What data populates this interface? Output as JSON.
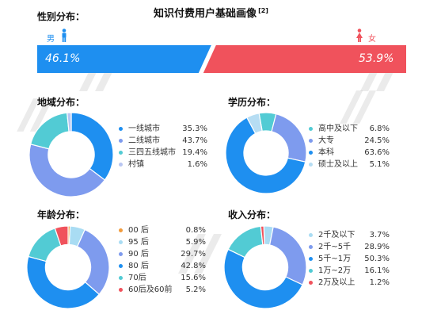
{
  "header": {
    "title": "知识付费用户基础画像",
    "ref": "[2]"
  },
  "gender": {
    "section_label": "性别分布：",
    "male_label": "男",
    "female_label": "女",
    "male_value": "46.1%",
    "female_value": "53.9%",
    "male_color": "#1e8ff0",
    "female_color": "#f0525c"
  },
  "region": {
    "section_label": "地域分布：",
    "items": [
      {
        "label": "一线城市",
        "value": "35.3%"
      },
      {
        "label": "二线城市",
        "value": "43.7%"
      },
      {
        "label": "三四五线城市",
        "value": "19.4%"
      },
      {
        "label": "村镇",
        "value": "1.6%"
      }
    ]
  },
  "education": {
    "section_label": "学历分布：",
    "items": [
      {
        "label": "高中及以下",
        "value": "6.8%"
      },
      {
        "label": "大专",
        "value": "24.5%"
      },
      {
        "label": "本科",
        "value": "63.6%"
      },
      {
        "label": "硕士及以上",
        "value": "5.1%"
      }
    ]
  },
  "age": {
    "section_label": "年龄分布：",
    "items": [
      {
        "label": "00 后",
        "value": "0.8%"
      },
      {
        "label": "95 后",
        "value": "5.9%"
      },
      {
        "label": "90 后",
        "value": "29.7%"
      },
      {
        "label": "80 后",
        "value": "42.8%"
      },
      {
        "label": "70后",
        "value": "15.6%"
      },
      {
        "label": "60后及60前",
        "value": "5.2%"
      }
    ]
  },
  "income": {
    "section_label": "收入分布：",
    "items": [
      {
        "label": "2千及以下",
        "value": "3.7%"
      },
      {
        "label": "2千~5千",
        "value": "28.9%"
      },
      {
        "label": "5千~1万",
        "value": "50.3%"
      },
      {
        "label": "1万~2万",
        "value": "16.1%"
      },
      {
        "label": "2万及以上",
        "value": "1.2%"
      }
    ]
  },
  "chart_data": [
    {
      "type": "bar",
      "categories": [
        "男",
        "女"
      ],
      "values": [
        46.1,
        53.9
      ],
      "title": "性别分布",
      "colors": [
        "#1e8ff0",
        "#f0525c"
      ]
    },
    {
      "type": "pie",
      "title": "地域分布",
      "categories": [
        "一线城市",
        "二线城市",
        "三四五线城市",
        "村镇"
      ],
      "values": [
        35.3,
        43.7,
        19.4,
        1.6
      ],
      "colors": [
        "#1e8ff0",
        "#7e9bee",
        "#52cbd4",
        "#b9c6f2"
      ]
    },
    {
      "type": "pie",
      "title": "学历分布",
      "categories": [
        "高中及以下",
        "大专",
        "本科",
        "硕士及以上"
      ],
      "values": [
        6.8,
        24.5,
        63.6,
        5.1
      ],
      "colors": [
        "#52cbd4",
        "#7e9bee",
        "#1e8ff0",
        "#b6ddf3"
      ]
    },
    {
      "type": "pie",
      "title": "年龄分布",
      "categories": [
        "00 后",
        "95 后",
        "90 后",
        "80 后",
        "70后",
        "60后及60前"
      ],
      "values": [
        0.8,
        5.9,
        29.7,
        42.8,
        15.6,
        5.2
      ],
      "colors": [
        "#f29b3d",
        "#a9dcf3",
        "#7e9bee",
        "#1e8ff0",
        "#52cbd4",
        "#f0525c"
      ]
    },
    {
      "type": "pie",
      "title": "收入分布",
      "categories": [
        "2千及以下",
        "2千~5千",
        "5千~1万",
        "1万~2万",
        "2万及以上"
      ],
      "values": [
        3.7,
        28.9,
        50.3,
        16.1,
        1.2
      ],
      "colors": [
        "#a9dcf3",
        "#7e9bee",
        "#1e8ff0",
        "#52cbd4",
        "#f0525c"
      ]
    }
  ]
}
